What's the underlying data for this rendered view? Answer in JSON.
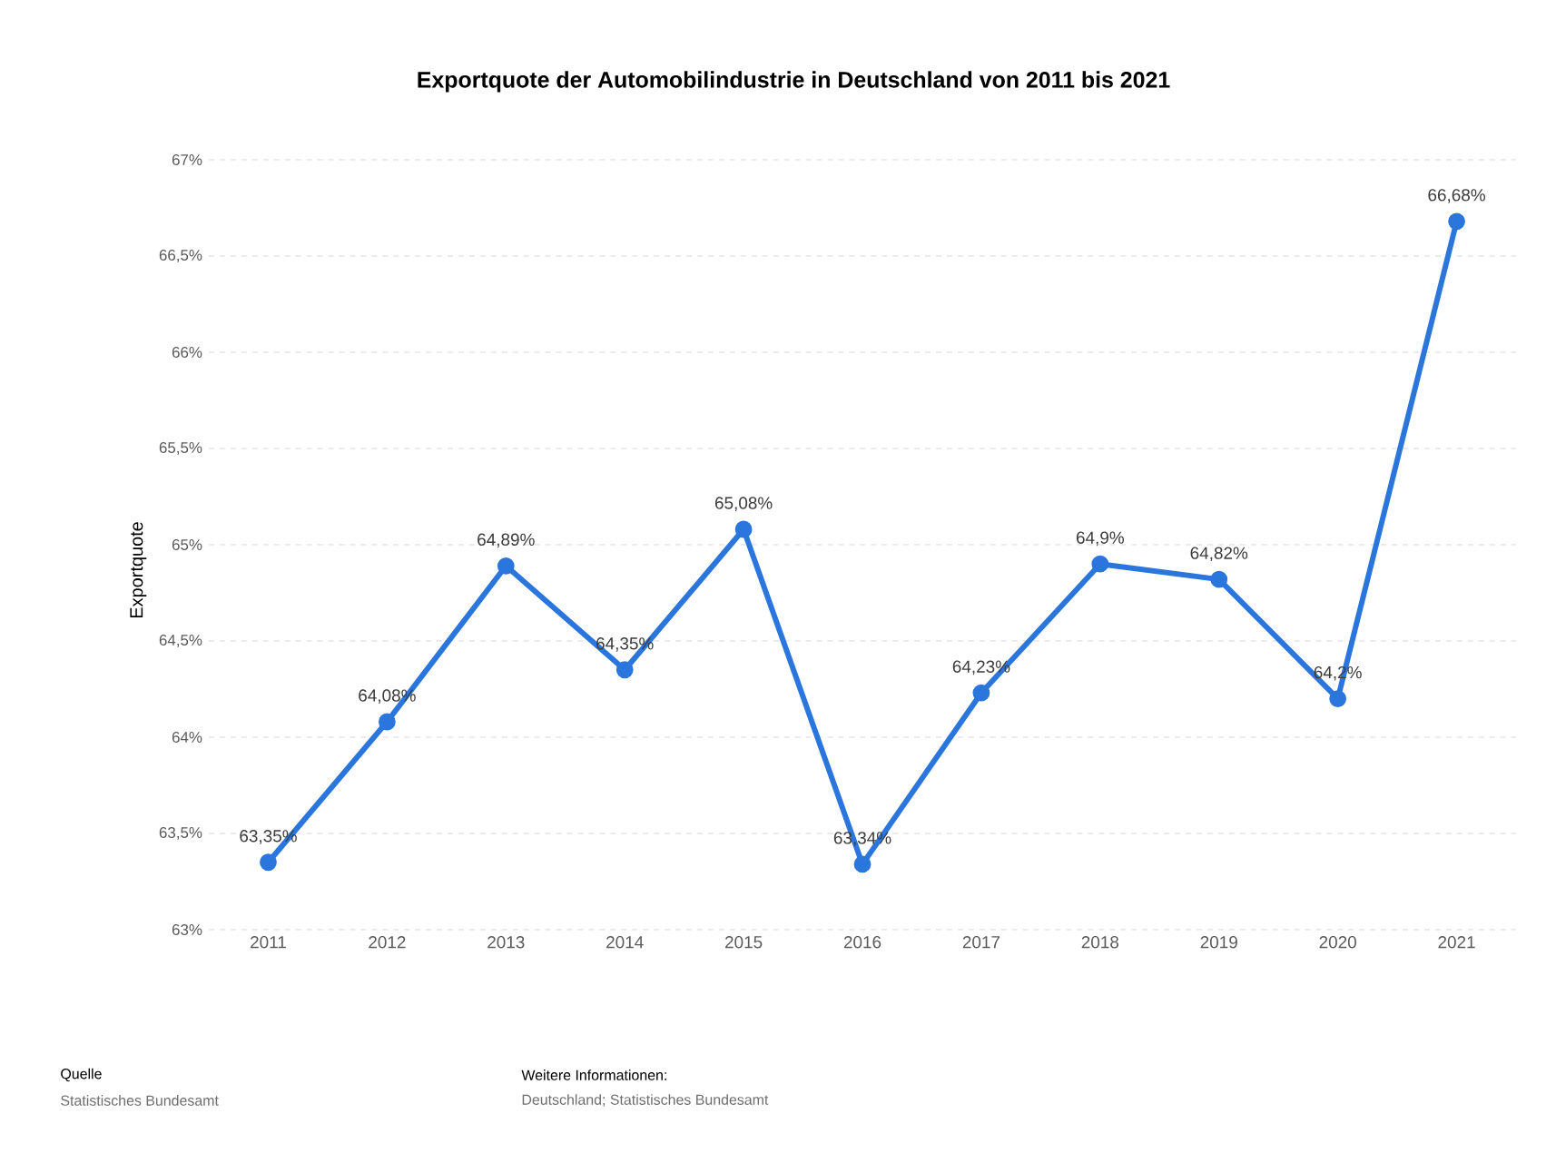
{
  "chart_data": {
    "type": "line",
    "title": "Exportquote der Automobilindustrie in Deutschland von 2011 bis 2021",
    "ylabel": "Exportquote",
    "categories": [
      "2011",
      "2012",
      "2013",
      "2014",
      "2015",
      "2016",
      "2017",
      "2018",
      "2019",
      "2020",
      "2021"
    ],
    "values": [
      63.35,
      64.08,
      64.89,
      64.35,
      65.08,
      63.34,
      64.23,
      64.9,
      64.82,
      64.2,
      66.68
    ],
    "value_labels": [
      "63,35%",
      "64,08%",
      "64,89%",
      "64,35%",
      "65,08%",
      "63,34%",
      "64,23%",
      "64,9%",
      "64,82%",
      "64,2%",
      "66,68%"
    ],
    "color": "#2a76dd",
    "marker": "circle",
    "line_style": "solid",
    "grid": "y",
    "ylim": [
      63,
      67
    ],
    "yticks": [
      {
        "value": 63,
        "label": "63%"
      },
      {
        "value": 63.5,
        "label": "63,5%"
      },
      {
        "value": 64,
        "label": "64%"
      },
      {
        "value": 64.5,
        "label": "64,5%"
      },
      {
        "value": 65,
        "label": "65%"
      },
      {
        "value": 65.5,
        "label": "65,5%"
      },
      {
        "value": 66,
        "label": "66%"
      },
      {
        "value": 66.5,
        "label": "66,5%"
      },
      {
        "value": 67,
        "label": "67%"
      }
    ],
    "annotations": [
      "Quelle",
      "Statistisches Bundesamt",
      "Weitere Informationen:",
      "Deutschland; Statistisches Bundesamt"
    ]
  }
}
